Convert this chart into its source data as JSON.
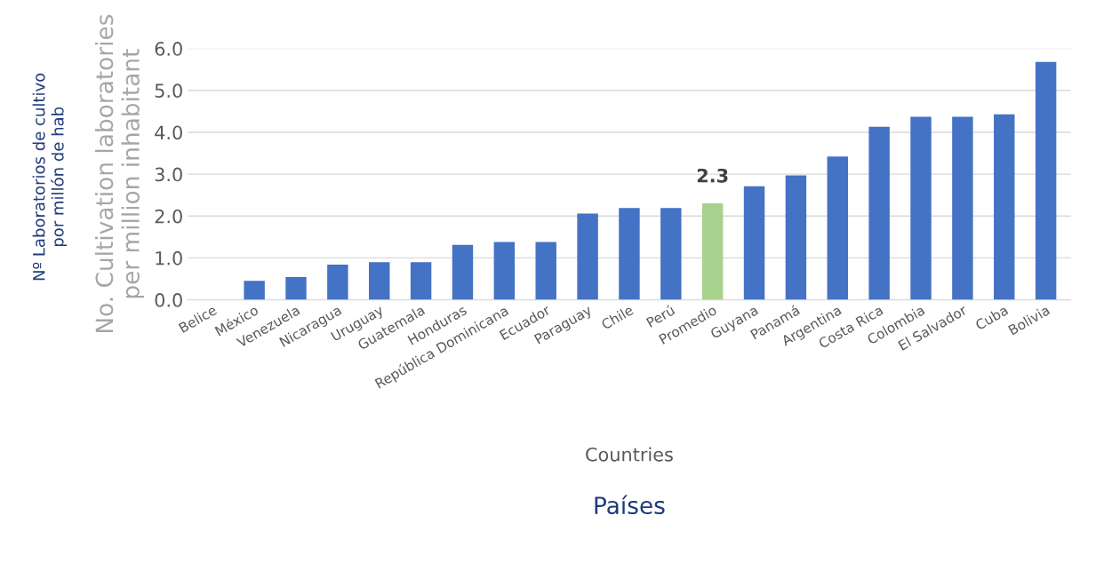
{
  "chart_data": {
    "type": "bar",
    "categories": [
      "Belice",
      "México",
      "Venezuela",
      "Nicaragua",
      "Uruguay",
      "Guatemala",
      "Honduras",
      "República Dominicana",
      "Ecuador",
      "Paraguay",
      "Chile",
      "Perú",
      "Promedio",
      "Guyana",
      "Panamá",
      "Argentina",
      "Costa Rica",
      "Colombia",
      "El Salvador",
      "Cuba",
      "Bolivia"
    ],
    "values": [
      0,
      0.45,
      0.54,
      0.84,
      0.9,
      0.9,
      1.31,
      1.38,
      1.38,
      2.06,
      2.19,
      2.19,
      2.3,
      2.71,
      2.97,
      3.42,
      4.13,
      4.37,
      4.37,
      4.43,
      5.68
    ],
    "colors": [
      "#4472c4",
      "#4472c4",
      "#4472c4",
      "#4472c4",
      "#4472c4",
      "#4472c4",
      "#4472c4",
      "#4472c4",
      "#4472c4",
      "#4472c4",
      "#4472c4",
      "#4472c4",
      "#a9d18e",
      "#4472c4",
      "#4472c4",
      "#4472c4",
      "#4472c4",
      "#4472c4",
      "#4472c4",
      "#4472c4",
      "#4472c4"
    ],
    "value_labels": [
      null,
      null,
      null,
      null,
      null,
      null,
      null,
      null,
      null,
      null,
      null,
      null,
      "2.3",
      null,
      null,
      null,
      null,
      null,
      null,
      null,
      null
    ],
    "ylim": [
      0,
      6
    ],
    "yticks": [
      {
        "value": 0,
        "label": "0.0"
      },
      {
        "value": 1,
        "label": "1.0"
      },
      {
        "value": 2,
        "label": "2.0"
      },
      {
        "value": 3,
        "label": "3.0"
      },
      {
        "value": 4,
        "label": "4.0"
      },
      {
        "value": 5,
        "label": "5.0"
      },
      {
        "value": 6,
        "label": "6.0"
      }
    ],
    "grid": "y",
    "xlabel": "Countries",
    "ylabel": "No. Cultivation laboratories\nper million inhabitant",
    "annotations": [
      "Nº Laboratorios de cultivo\npor millón de hab",
      "Países"
    ]
  }
}
